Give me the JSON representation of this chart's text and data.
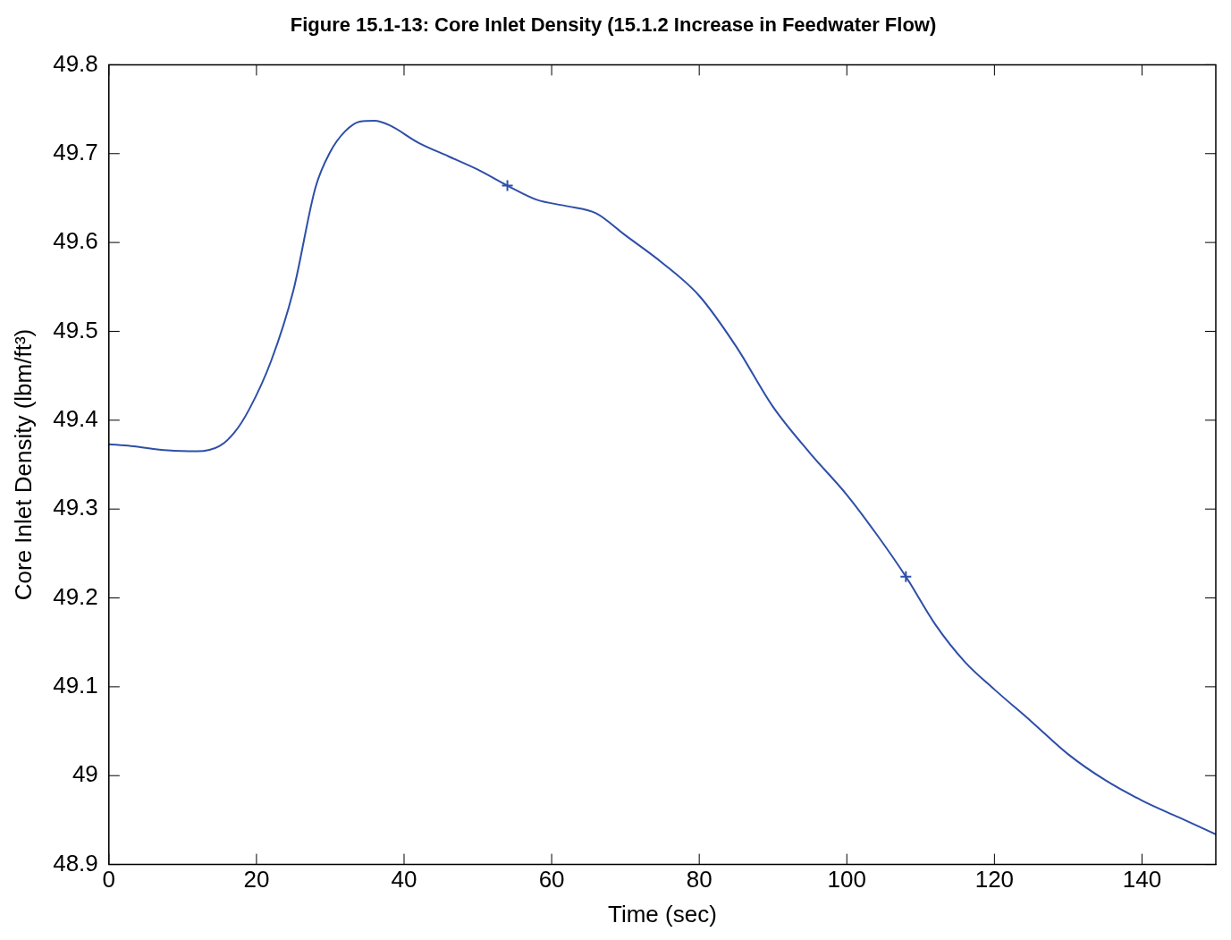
{
  "chart_data": {
    "type": "line",
    "title": "Figure 15.1-13: Core Inlet Density (15.1.2 Increase in Feedwater Flow)",
    "xlabel": "Time (sec)",
    "ylabel": "Core Inlet Density (lbm/ft³)",
    "xlim": [
      0,
      150
    ],
    "xticks": [
      0,
      20,
      40,
      60,
      80,
      100,
      120,
      140
    ],
    "ylim": [
      48.9,
      49.8
    ],
    "yticks": [
      48.9,
      49,
      49.1,
      49.2,
      49.3,
      49.4,
      49.5,
      49.6,
      49.7,
      49.8
    ],
    "grid": false,
    "legend": false,
    "series": [
      {
        "color": "#2e4fa8",
        "marker": "none",
        "line_style": "solid",
        "x": [
          0,
          3,
          8,
          12,
          15,
          17,
          19,
          22,
          25,
          28,
          30,
          32,
          34,
          36,
          38,
          42,
          46,
          50,
          54,
          58,
          62,
          66,
          70,
          75,
          80,
          85,
          90,
          95,
          100,
          104,
          108,
          112,
          116,
          120,
          125,
          130,
          135,
          140,
          145,
          150
        ],
        "values": [
          49.373,
          49.371,
          49.366,
          49.365,
          49.371,
          49.386,
          49.412,
          49.467,
          49.546,
          49.662,
          49.702,
          49.725,
          49.736,
          49.737,
          49.732,
          49.712,
          49.697,
          49.682,
          49.664,
          49.648,
          49.641,
          49.633,
          49.608,
          49.577,
          49.54,
          49.483,
          49.415,
          49.363,
          49.316,
          49.272,
          49.224,
          49.17,
          49.128,
          49.097,
          49.061,
          49.024,
          48.995,
          48.972,
          48.953,
          48.934
        ]
      },
      {
        "type": "scatter",
        "color": "#2e4fa8",
        "marker": "cross",
        "x": [
          54,
          108
        ],
        "values": [
          49.664,
          49.224
        ]
      }
    ]
  }
}
